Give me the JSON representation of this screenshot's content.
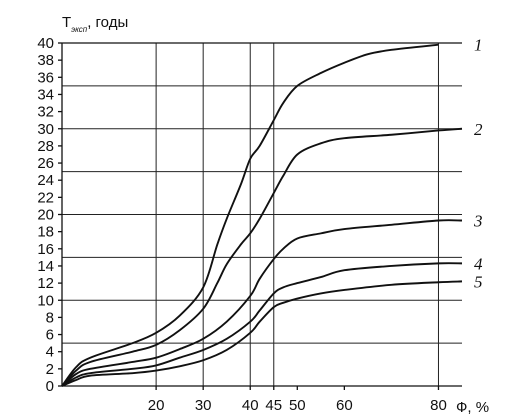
{
  "chart_data": {
    "type": "line",
    "ylabel": {
      "main": "T",
      "sub": "эксп",
      "suffix": ", годы"
    },
    "x_unit": "Ф, %",
    "ylim": [
      0,
      40
    ],
    "y_ticks": [
      0,
      2,
      4,
      6,
      8,
      10,
      12,
      14,
      16,
      18,
      20,
      22,
      24,
      26,
      28,
      30,
      32,
      34,
      36,
      38,
      40
    ],
    "x_ticks": [
      {
        "value": 20,
        "label": "20"
      },
      {
        "value": 30,
        "label": "30"
      },
      {
        "value": 40,
        "label": "40"
      },
      {
        "value": 45,
        "label": "45"
      },
      {
        "value": 50,
        "label": "50"
      },
      {
        "value": 60,
        "label": "60"
      },
      {
        "value": 80,
        "label": "80"
      }
    ],
    "grid_y_major": [
      5,
      10,
      15,
      20,
      25,
      30,
      35,
      40
    ],
    "grid_x": [
      20,
      30,
      40,
      45,
      80
    ],
    "series": [
      {
        "name": "1",
        "points": [
          [
            0,
            0
          ],
          [
            3,
            2.2
          ],
          [
            6,
            3.3
          ],
          [
            15,
            5.0
          ],
          [
            20,
            6.2
          ],
          [
            25,
            8.2
          ],
          [
            30,
            11.5
          ],
          [
            33,
            16.5
          ],
          [
            35,
            19.5
          ],
          [
            38,
            23.5
          ],
          [
            40,
            26.5
          ],
          [
            42,
            28.0
          ],
          [
            45,
            31.0
          ],
          [
            47,
            33.0
          ],
          [
            50,
            35.0
          ],
          [
            55,
            36.5
          ],
          [
            60,
            37.7
          ],
          [
            65,
            38.7
          ],
          [
            70,
            39.2
          ],
          [
            80,
            39.8
          ]
        ]
      },
      {
        "name": "2",
        "points": [
          [
            0,
            0
          ],
          [
            3,
            1.8
          ],
          [
            6,
            2.8
          ],
          [
            15,
            4.0
          ],
          [
            20,
            4.8
          ],
          [
            25,
            6.5
          ],
          [
            30,
            9.0
          ],
          [
            33,
            12.0
          ],
          [
            35,
            14.2
          ],
          [
            38,
            16.5
          ],
          [
            40,
            17.8
          ],
          [
            42,
            19.5
          ],
          [
            45,
            22.5
          ],
          [
            47,
            24.5
          ],
          [
            50,
            27.0
          ],
          [
            55,
            28.3
          ],
          [
            60,
            28.9
          ],
          [
            70,
            29.3
          ],
          [
            80,
            29.8
          ],
          [
            85,
            30.0
          ]
        ]
      },
      {
        "name": "3",
        "points": [
          [
            0,
            0
          ],
          [
            3,
            1.4
          ],
          [
            6,
            2.0
          ],
          [
            15,
            2.8
          ],
          [
            20,
            3.3
          ],
          [
            25,
            4.3
          ],
          [
            30,
            5.5
          ],
          [
            35,
            7.5
          ],
          [
            40,
            10.5
          ],
          [
            42,
            12.5
          ],
          [
            45,
            14.8
          ],
          [
            47,
            16.0
          ],
          [
            50,
            17.2
          ],
          [
            55,
            17.8
          ],
          [
            60,
            18.3
          ],
          [
            70,
            18.8
          ],
          [
            80,
            19.3
          ],
          [
            85,
            19.3
          ]
        ]
      },
      {
        "name": "4",
        "points": [
          [
            0,
            0
          ],
          [
            3,
            1.0
          ],
          [
            6,
            1.5
          ],
          [
            15,
            2.0
          ],
          [
            20,
            2.4
          ],
          [
            25,
            3.3
          ],
          [
            30,
            4.2
          ],
          [
            35,
            5.5
          ],
          [
            40,
            7.5
          ],
          [
            42,
            8.8
          ],
          [
            45,
            10.8
          ],
          [
            47,
            11.5
          ],
          [
            50,
            12.0
          ],
          [
            55,
            12.7
          ],
          [
            60,
            13.5
          ],
          [
            70,
            14.0
          ],
          [
            80,
            14.3
          ],
          [
            85,
            14.3
          ]
        ]
      },
      {
        "name": "5",
        "points": [
          [
            0,
            0
          ],
          [
            3,
            0.7
          ],
          [
            6,
            1.2
          ],
          [
            15,
            1.5
          ],
          [
            20,
            1.8
          ],
          [
            25,
            2.3
          ],
          [
            30,
            3.0
          ],
          [
            35,
            4.2
          ],
          [
            40,
            6.2
          ],
          [
            42,
            7.5
          ],
          [
            45,
            9.2
          ],
          [
            47,
            9.7
          ],
          [
            50,
            10.2
          ],
          [
            55,
            10.8
          ],
          [
            60,
            11.2
          ],
          [
            70,
            11.8
          ],
          [
            80,
            12.1
          ],
          [
            85,
            12.2
          ]
        ]
      }
    ]
  }
}
